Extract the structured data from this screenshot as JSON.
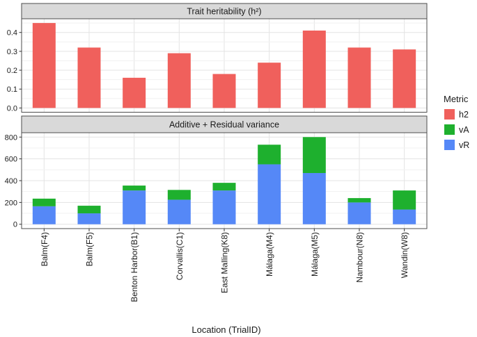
{
  "figure": {
    "background": "#ffffff",
    "panel_background": "#ffffff",
    "strip_background": "#d9d9d9",
    "grid_major_color": "#e3e3e3",
    "grid_minor_color": "#f1f1f1",
    "border_color": "#4d4d4d"
  },
  "legend": {
    "title": "Metric",
    "position": "right",
    "items": [
      {
        "label": "h2",
        "color": "#F0605C"
      },
      {
        "label": "vA",
        "color": "#1EB02E"
      },
      {
        "label": "vR",
        "color": "#5588F7"
      }
    ]
  },
  "x_axis": {
    "title": "Location (TrialID)",
    "categories": [
      "Balm(F4)",
      "Balm(F5)",
      "Benton Harbor(B1)",
      "Corvallis(C1)",
      "East Malling(K8)",
      "Málaga(M4)",
      "Málaga(M5)",
      "Nambour(N8)",
      "Wandin(W8)"
    ]
  },
  "chart_data": [
    {
      "type": "bar",
      "stacked": false,
      "panel_title": "Trait heritability (h²)",
      "categories": [
        "Balm(F4)",
        "Balm(F5)",
        "Benton Harbor(B1)",
        "Corvallis(C1)",
        "East Malling(K8)",
        "Málaga(M4)",
        "Málaga(M5)",
        "Nambour(N8)",
        "Wandin(W8)"
      ],
      "series": [
        {
          "name": "h2",
          "color": "#F0605C",
          "values": [
            0.45,
            0.32,
            0.16,
            0.29,
            0.18,
            0.24,
            0.41,
            0.32,
            0.31
          ]
        }
      ],
      "xlabel": "Location (TrialID)",
      "ylabel": "",
      "ylim": [
        0,
        0.45
      ],
      "yticks": [
        0,
        0.1,
        0.2,
        0.3,
        0.4
      ],
      "ytick_labels": [
        "0.0",
        "0.1",
        "0.2",
        "0.3",
        "0.4"
      ],
      "minor_ticks": [
        0.05,
        0.15,
        0.25,
        0.35,
        0.45
      ],
      "grid": true,
      "legend_position": "right"
    },
    {
      "type": "bar",
      "stacked": true,
      "panel_title": "Additive + Residual variance",
      "categories": [
        "Balm(F4)",
        "Balm(F5)",
        "Benton Harbor(B1)",
        "Corvallis(C1)",
        "East Malling(K8)",
        "Málaga(M4)",
        "Málaga(M5)",
        "Nambour(N8)",
        "Wandin(W8)"
      ],
      "series": [
        {
          "name": "vR",
          "color": "#5588F7",
          "values": [
            165,
            100,
            310,
            225,
            310,
            550,
            470,
            200,
            135
          ]
        },
        {
          "name": "vA",
          "color": "#1EB02E",
          "values": [
            70,
            70,
            45,
            90,
            70,
            180,
            330,
            40,
            175
          ]
        }
      ],
      "stack_totals": [
        235,
        170,
        355,
        315,
        380,
        730,
        800,
        240,
        310
      ],
      "xlabel": "Location (TrialID)",
      "ylabel": "",
      "ylim": [
        0,
        800
      ],
      "yticks": [
        0,
        200,
        400,
        600,
        800
      ],
      "ytick_labels": [
        "0",
        "200",
        "400",
        "600",
        "800"
      ],
      "minor_ticks": [
        100,
        300,
        500,
        700
      ],
      "grid": true,
      "legend_position": "right"
    }
  ]
}
